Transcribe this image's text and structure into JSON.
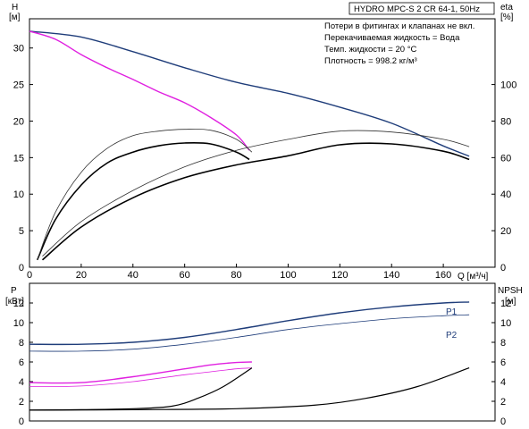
{
  "colors": {
    "blue": "#1f3d7a",
    "magenta": "#e020e0",
    "black": "#000000",
    "thin_black": "#333333"
  },
  "chart_data": [
    {
      "type": "line",
      "panel": "top",
      "title": "HYDRO MPC-S 2 CR 64-1, 50Hz",
      "notes": [
        "Потери в фитингах и клапанах не вкл.",
        "Перекачиваемая жидкость = Вода",
        "Темп. жидкости = 20 °C",
        "Плотность = 998.2 кг/м³"
      ],
      "x_axis": {
        "label": "Q [м³/ч]",
        "range": [
          0,
          180
        ],
        "ticks": [
          0,
          20,
          40,
          60,
          80,
          100,
          120,
          140,
          160
        ]
      },
      "y_left": {
        "name": "H",
        "unit": "[м]",
        "range": [
          0,
          34
        ],
        "ticks": [
          0,
          5,
          10,
          15,
          20,
          25,
          30
        ]
      },
      "y_right": {
        "name": "eta",
        "unit": "[%]",
        "range": [
          0,
          136
        ],
        "ticks": [
          0,
          20,
          40,
          60,
          80,
          100
        ]
      },
      "series": [
        {
          "color": "#1f3d7a",
          "axis": "left",
          "width": 1.4,
          "points": [
            [
              0,
              32.3
            ],
            [
              20,
              31.5
            ],
            [
              40,
              29.5
            ],
            [
              60,
              27.3
            ],
            [
              80,
              25.3
            ],
            [
              100,
              23.8
            ],
            [
              120,
              21.9
            ],
            [
              140,
              19.7
            ],
            [
              160,
              16.6
            ],
            [
              170,
              15.2
            ]
          ]
        },
        {
          "color": "#e020e0",
          "axis": "left",
          "width": 1.4,
          "points": [
            [
              0,
              32.3
            ],
            [
              10,
              31.2
            ],
            [
              20,
              29.1
            ],
            [
              30,
              27.3
            ],
            [
              40,
              25.7
            ],
            [
              50,
              24.0
            ],
            [
              60,
              22.5
            ],
            [
              70,
              20.5
            ],
            [
              80,
              18.1
            ],
            [
              85,
              16.0
            ]
          ]
        },
        {
          "color": "#000000",
          "axis": "right",
          "width": 1.6,
          "points": [
            [
              3,
              4
            ],
            [
              10,
              26
            ],
            [
              20,
              45
            ],
            [
              30,
              57
            ],
            [
              40,
              63
            ],
            [
              50,
              66.5
            ],
            [
              60,
              68
            ],
            [
              70,
              67.5
            ],
            [
              80,
              63
            ],
            [
              85,
              59
            ]
          ]
        },
        {
          "color": "#333333",
          "axis": "right",
          "width": 0.8,
          "points": [
            [
              3,
              4
            ],
            [
              10,
              30
            ],
            [
              20,
              52
            ],
            [
              30,
              65
            ],
            [
              40,
              72
            ],
            [
              50,
              74.5
            ],
            [
              60,
              75.5
            ],
            [
              70,
              75
            ],
            [
              80,
              70
            ],
            [
              86,
              63
            ]
          ]
        },
        {
          "color": "#000000",
          "axis": "right",
          "width": 1.6,
          "points": [
            [
              5,
              4
            ],
            [
              20,
              22
            ],
            [
              40,
              38
            ],
            [
              60,
              49
            ],
            [
              80,
              56
            ],
            [
              100,
              61
            ],
            [
              120,
              67
            ],
            [
              140,
              67.5
            ],
            [
              160,
              63.5
            ],
            [
              170,
              59
            ]
          ]
        },
        {
          "color": "#333333",
          "axis": "right",
          "width": 0.8,
          "points": [
            [
              5,
              6
            ],
            [
              20,
              25
            ],
            [
              40,
              42
            ],
            [
              60,
              55
            ],
            [
              80,
              64
            ],
            [
              100,
              70
            ],
            [
              120,
              74.5
            ],
            [
              140,
              74
            ],
            [
              160,
              70
            ],
            [
              170,
              66
            ]
          ]
        }
      ]
    },
    {
      "type": "line",
      "panel": "bottom",
      "x_axis": {
        "range": [
          0,
          180
        ]
      },
      "y_left": {
        "name": "P",
        "unit": "[кВт]",
        "range": [
          0,
          14
        ],
        "ticks": [
          0,
          2,
          4,
          6,
          8,
          10,
          12
        ]
      },
      "y_right": {
        "name": "NPSH",
        "unit": "[м]",
        "range": [
          0,
          14
        ],
        "ticks": [
          0,
          2,
          4,
          6,
          8,
          10,
          12
        ]
      },
      "series": [
        {
          "name": "P1",
          "color": "#1f3d7a",
          "axis": "left",
          "width": 1.4,
          "points": [
            [
              0,
              7.8
            ],
            [
              20,
              7.8
            ],
            [
              40,
              8.0
            ],
            [
              60,
              8.5
            ],
            [
              80,
              9.3
            ],
            [
              100,
              10.2
            ],
            [
              120,
              11.0
            ],
            [
              140,
              11.6
            ],
            [
              160,
              12.0
            ],
            [
              170,
              12.1
            ]
          ]
        },
        {
          "name": "P2",
          "color": "#1f3d7a",
          "axis": "left",
          "width": 0.8,
          "points": [
            [
              0,
              7.1
            ],
            [
              20,
              7.1
            ],
            [
              40,
              7.3
            ],
            [
              60,
              7.8
            ],
            [
              80,
              8.5
            ],
            [
              100,
              9.3
            ],
            [
              120,
              9.9
            ],
            [
              140,
              10.4
            ],
            [
              160,
              10.7
            ],
            [
              170,
              10.8
            ]
          ]
        },
        {
          "color": "#e020e0",
          "axis": "left",
          "width": 1.4,
          "points": [
            [
              0,
              3.9
            ],
            [
              20,
              3.9
            ],
            [
              40,
              4.5
            ],
            [
              60,
              5.3
            ],
            [
              70,
              5.7
            ],
            [
              80,
              5.95
            ],
            [
              86,
              6.0
            ]
          ]
        },
        {
          "color": "#e020e0",
          "axis": "left",
          "width": 0.8,
          "points": [
            [
              0,
              3.5
            ],
            [
              20,
              3.55
            ],
            [
              40,
              4.0
            ],
            [
              60,
              4.7
            ],
            [
              70,
              5.0
            ],
            [
              80,
              5.3
            ],
            [
              86,
              5.4
            ]
          ]
        },
        {
          "color": "#000000",
          "axis": "right",
          "width": 1.2,
          "points": [
            [
              0,
              1.1
            ],
            [
              20,
              1.15
            ],
            [
              40,
              1.25
            ],
            [
              55,
              1.5
            ],
            [
              65,
              2.3
            ],
            [
              75,
              3.5
            ],
            [
              86,
              5.4
            ]
          ]
        },
        {
          "color": "#000000",
          "axis": "right",
          "width": 1.2,
          "points": [
            [
              0,
              1.1
            ],
            [
              40,
              1.15
            ],
            [
              80,
              1.25
            ],
            [
              110,
              1.6
            ],
            [
              130,
              2.3
            ],
            [
              150,
              3.5
            ],
            [
              170,
              5.4
            ]
          ]
        }
      ]
    }
  ]
}
